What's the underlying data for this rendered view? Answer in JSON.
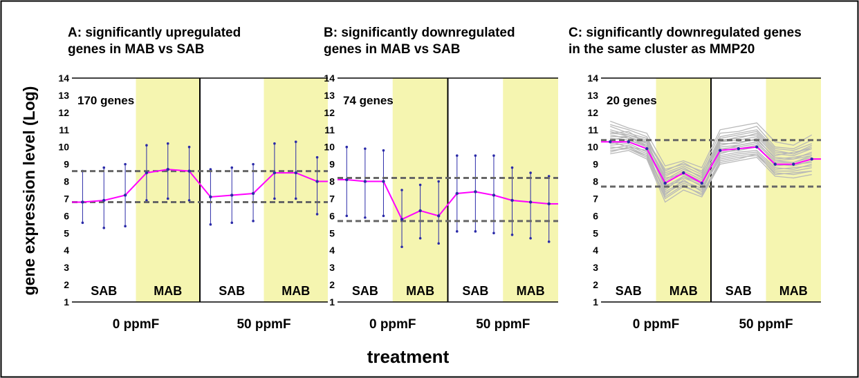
{
  "figure": {
    "ylabel": "gene expression level (Log)",
    "xlabel": "treatment",
    "colors": {
      "mean_line": "#ff00ff",
      "error_bar": "#2a2aa8",
      "mab_band": "#f5f5b0",
      "threshold": "#666666",
      "gene_lines": "#b8b8b8",
      "frame": "#000000"
    }
  },
  "chart_data": [
    {
      "type": "line",
      "title": [
        "A: significantly upregulated",
        "genes in MAB vs SAB"
      ],
      "annotation": "170 genes",
      "ylim": [
        1,
        14
      ],
      "yticks": [
        1,
        2,
        3,
        4,
        5,
        6,
        7,
        8,
        9,
        10,
        11,
        12,
        13,
        14
      ],
      "groups": [
        "0 ppmF",
        "50 ppmF"
      ],
      "bands": [
        "SAB",
        "MAB",
        "SAB",
        "MAB"
      ],
      "thresholds": [
        8.6,
        6.8
      ],
      "mean_line": [
        6.8,
        6.9,
        7.2,
        8.5,
        8.7,
        8.6,
        7.1,
        7.2,
        7.3,
        8.5,
        8.5,
        8.0
      ],
      "error_bars": [
        [
          5.6,
          8.6
        ],
        [
          5.3,
          8.8
        ],
        [
          5.4,
          9.0
        ],
        [
          6.9,
          10.1
        ],
        [
          7.0,
          10.2
        ],
        [
          6.9,
          10.0
        ],
        [
          5.5,
          8.7
        ],
        [
          5.6,
          8.8
        ],
        [
          5.7,
          9.0
        ],
        [
          7.0,
          10.2
        ],
        [
          7.0,
          10.3
        ],
        [
          6.1,
          9.4
        ]
      ],
      "gene_lines": []
    },
    {
      "type": "line",
      "title": [
        "B: significantly downregulated",
        "genes in MAB vs SAB"
      ],
      "annotation": "74 genes",
      "ylim": [
        1,
        14
      ],
      "yticks": [
        1,
        2,
        3,
        4,
        5,
        6,
        7,
        8,
        9,
        10,
        11,
        12,
        13,
        14
      ],
      "groups": [
        "0 ppmF",
        "50 ppmF"
      ],
      "bands": [
        "SAB",
        "MAB",
        "SAB",
        "MAB"
      ],
      "thresholds": [
        8.2,
        5.7
      ],
      "mean_line": [
        8.1,
        8.0,
        8.0,
        5.8,
        6.3,
        6.0,
        7.3,
        7.4,
        7.2,
        6.9,
        6.8,
        6.7
      ],
      "error_bars": [
        [
          6.0,
          10.0
        ],
        [
          5.9,
          9.9
        ],
        [
          6.0,
          9.8
        ],
        [
          4.2,
          7.5
        ],
        [
          4.7,
          7.8
        ],
        [
          4.4,
          8.0
        ],
        [
          5.1,
          9.5
        ],
        [
          5.1,
          9.5
        ],
        [
          5.0,
          9.5
        ],
        [
          4.9,
          8.8
        ],
        [
          4.7,
          8.5
        ],
        [
          4.5,
          8.3
        ]
      ],
      "gene_lines": []
    },
    {
      "type": "line",
      "title": [
        "C: significantly downregulated genes",
        "in the same cluster as MMP20"
      ],
      "annotation": "20 genes",
      "ylim": [
        1,
        14
      ],
      "yticks": [
        1,
        2,
        3,
        4,
        5,
        6,
        7,
        8,
        9,
        10,
        11,
        12,
        13,
        14
      ],
      "groups": [
        "0 ppmF",
        "50 ppmF"
      ],
      "bands": [
        "SAB",
        "MAB",
        "SAB",
        "MAB"
      ],
      "thresholds": [
        10.4,
        7.7
      ],
      "mean_line": [
        10.3,
        10.3,
        9.9,
        7.9,
        8.5,
        7.9,
        9.8,
        9.9,
        10.0,
        9.0,
        9.0,
        9.3
      ],
      "error_bars": [],
      "gene_lines": [
        [
          11.3,
          11.0,
          10.6,
          8.4,
          8.8,
          8.2,
          10.5,
          10.7,
          10.9,
          9.8,
          9.6,
          10.0
        ],
        [
          10.8,
          10.9,
          10.2,
          8.0,
          8.6,
          8.1,
          10.1,
          10.3,
          10.4,
          9.4,
          9.3,
          9.7
        ],
        [
          10.5,
          10.4,
          10.0,
          7.6,
          8.2,
          7.8,
          9.9,
          10.0,
          10.2,
          9.1,
          9.1,
          9.4
        ],
        [
          10.1,
          10.2,
          9.7,
          7.3,
          7.9,
          7.5,
          9.5,
          9.7,
          9.8,
          8.8,
          8.7,
          9.0
        ],
        [
          9.8,
          9.9,
          9.4,
          7.0,
          7.7,
          7.3,
          9.2,
          9.4,
          9.5,
          8.5,
          8.4,
          8.6
        ],
        [
          11.0,
          10.7,
          10.4,
          8.7,
          9.0,
          8.6,
          10.8,
          10.9,
          11.2,
          10.0,
          9.9,
          10.4
        ],
        [
          10.6,
          10.6,
          10.1,
          8.2,
          8.4,
          7.9,
          10.3,
          10.6,
          10.7,
          9.6,
          9.5,
          9.9
        ],
        [
          10.3,
          10.0,
          9.8,
          7.8,
          8.0,
          7.6,
          9.7,
          9.8,
          10.0,
          9.0,
          8.9,
          9.2
        ],
        [
          9.9,
          10.1,
          9.6,
          7.5,
          8.3,
          7.7,
          9.4,
          9.6,
          9.7,
          8.7,
          8.8,
          8.9
        ],
        [
          10.7,
          10.5,
          10.3,
          8.1,
          8.7,
          8.3,
          10.2,
          10.2,
          10.5,
          9.3,
          9.4,
          9.6
        ],
        [
          11.5,
          11.1,
          10.8,
          8.9,
          9.2,
          8.8,
          11.0,
          11.2,
          11.4,
          10.3,
          10.1,
          10.7
        ],
        [
          10.2,
          10.3,
          9.9,
          7.2,
          8.1,
          7.4,
          9.6,
          9.9,
          10.1,
          8.9,
          9.0,
          9.1
        ],
        [
          10.4,
          10.6,
          10.0,
          7.9,
          8.5,
          8.0,
          9.8,
          10.1,
          10.3,
          9.2,
          9.3,
          9.5
        ],
        [
          9.6,
          9.8,
          9.3,
          6.8,
          7.5,
          7.1,
          9.0,
          9.2,
          9.4,
          8.3,
          8.2,
          8.4
        ],
        [
          11.2,
          10.8,
          10.5,
          8.5,
          8.9,
          8.4,
          10.6,
          10.8,
          11.0,
          9.9,
          9.8,
          10.2
        ],
        [
          10.0,
          9.9,
          9.5,
          7.4,
          8.0,
          7.6,
          9.3,
          9.5,
          9.6,
          8.6,
          8.6,
          8.8
        ],
        [
          10.9,
          10.6,
          10.2,
          8.3,
          8.8,
          8.2,
          10.4,
          10.5,
          10.8,
          9.7,
          9.6,
          10.1
        ],
        [
          10.5,
          10.4,
          10.1,
          7.7,
          8.3,
          7.9,
          10.0,
          10.1,
          10.3,
          9.2,
          9.1,
          9.5
        ],
        [
          9.7,
          10.0,
          9.5,
          7.1,
          7.8,
          7.2,
          9.1,
          9.3,
          9.6,
          8.4,
          8.5,
          8.6
        ],
        [
          10.8,
          10.7,
          10.3,
          8.6,
          9.1,
          8.5,
          10.3,
          10.4,
          10.6,
          9.5,
          9.7,
          9.9
        ]
      ]
    }
  ]
}
